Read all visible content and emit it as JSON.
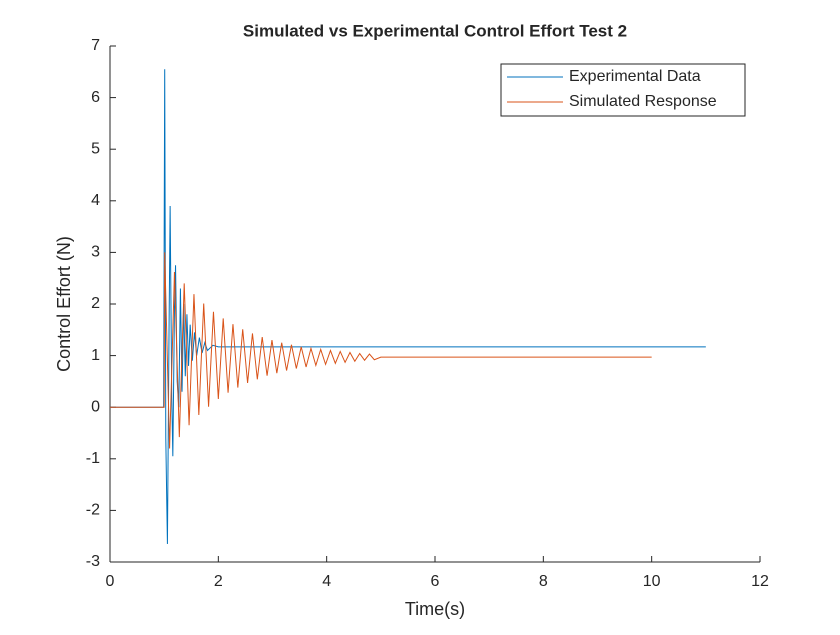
{
  "chart_data": {
    "type": "line",
    "title": "Simulated vs Experimental Control Effort Test 2",
    "xlabel": "Time(s)",
    "ylabel": "Control Effort (N)",
    "xlim": [
      0,
      12
    ],
    "xticks": [
      0,
      2,
      4,
      6,
      8,
      10,
      12
    ],
    "ylim": [
      -3,
      7
    ],
    "yticks": [
      -3,
      -2,
      -1,
      0,
      1,
      2,
      3,
      4,
      5,
      6,
      7
    ],
    "legend": "upper right",
    "series": [
      {
        "name": "Experimental Data",
        "color": "#0072bd",
        "x": [
          0,
          0.99,
          1.01,
          1.03,
          1.06,
          1.09,
          1.11,
          1.14,
          1.16,
          1.19,
          1.21,
          1.24,
          1.27,
          1.3,
          1.33,
          1.36,
          1.39,
          1.42,
          1.45,
          1.48,
          1.52,
          1.56,
          1.6,
          1.65,
          1.7,
          1.75,
          1.8,
          1.9,
          2.0,
          11.0
        ],
        "values": [
          0,
          0,
          6.55,
          -0.6,
          -2.65,
          1.5,
          3.9,
          0.2,
          -0.95,
          1.9,
          2.75,
          0.5,
          0.0,
          2.3,
          0.3,
          2.0,
          0.6,
          1.8,
          0.8,
          1.6,
          0.9,
          1.45,
          1.0,
          1.35,
          1.05,
          1.25,
          1.1,
          1.2,
          1.17,
          1.17
        ]
      },
      {
        "name": "Simulated Response",
        "color": "#d95319",
        "x": [
          0,
          1.0,
          1.01,
          1.1,
          1.19,
          1.28,
          1.37,
          1.46,
          1.55,
          1.64,
          1.73,
          1.82,
          1.91,
          2.0,
          2.09,
          2.18,
          2.27,
          2.36,
          2.45,
          2.54,
          2.63,
          2.72,
          2.81,
          2.9,
          2.99,
          3.08,
          3.17,
          3.26,
          3.35,
          3.44,
          3.53,
          3.62,
          3.71,
          3.8,
          3.89,
          3.98,
          4.07,
          4.16,
          4.25,
          4.34,
          4.43,
          4.52,
          4.61,
          4.7,
          4.79,
          4.88,
          5.0,
          10.0
        ],
        "values": [
          0,
          0,
          3.0,
          -0.8,
          2.62,
          -0.58,
          2.4,
          -0.35,
          2.19,
          -0.15,
          2.01,
          0.01,
          1.85,
          0.16,
          1.72,
          0.28,
          1.61,
          0.38,
          1.51,
          0.47,
          1.43,
          0.54,
          1.36,
          0.61,
          1.3,
          0.66,
          1.25,
          0.71,
          1.21,
          0.75,
          1.17,
          0.78,
          1.14,
          0.81,
          1.12,
          0.83,
          1.1,
          0.85,
          1.08,
          0.87,
          1.06,
          0.89,
          1.04,
          0.91,
          1.03,
          0.92,
          0.97,
          0.97
        ]
      }
    ]
  }
}
